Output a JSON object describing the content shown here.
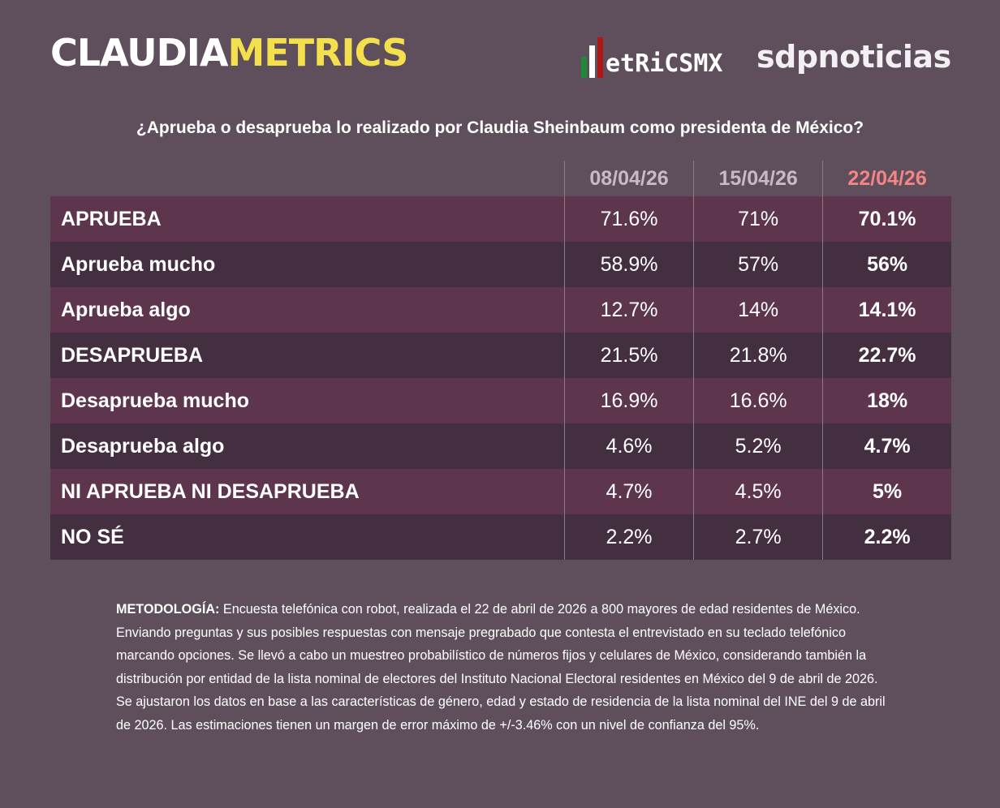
{
  "header": {
    "brand_part1": "CLAUDIA",
    "brand_part2": "METRICS",
    "logo_metrics": "etRiCSMX",
    "logo_sdp": "sdpnoticias",
    "brand_colors": {
      "yellow": "#f4e04d",
      "highlight": "#f28585"
    }
  },
  "title": "¿Aprueba o desaprueba lo realizado por Claudia Sheinbaum como presidenta de México?",
  "chart_data": {
    "type": "table",
    "columns": [
      "08/04/26",
      "15/04/26",
      "22/04/26"
    ],
    "rows": [
      {
        "label": "APRUEBA",
        "values": [
          "71.6%",
          "71%",
          "70.1%"
        ]
      },
      {
        "label": "Aprueba mucho",
        "values": [
          "58.9%",
          "57%",
          "56%"
        ]
      },
      {
        "label": "Aprueba algo",
        "values": [
          "12.7%",
          "14%",
          "14.1%"
        ]
      },
      {
        "label": "DESAPRUEBA",
        "values": [
          "21.5%",
          "21.8%",
          "22.7%"
        ]
      },
      {
        "label": "Desaprueba mucho",
        "values": [
          "16.9%",
          "16.6%",
          "18%"
        ]
      },
      {
        "label": "Desaprueba algo",
        "values": [
          "4.6%",
          "5.2%",
          "4.7%"
        ]
      },
      {
        "label": "NI APRUEBA NI DESAPRUEBA",
        "values": [
          "4.7%",
          "4.5%",
          "5%"
        ]
      },
      {
        "label": "NO SÉ",
        "values": [
          "2.2%",
          "2.7%",
          "2.2%"
        ]
      }
    ]
  },
  "methodology": {
    "label": "METODOLOGÍA:",
    "text": " Encuesta telefónica con robot, realizada el 22 de abril de 2026 a 800 mayores de edad residentes de México. Enviando preguntas y sus posibles respuestas con mensaje pregrabado que contesta el entrevistado en su teclado telefónico marcando opciones. Se llevó a cabo un muestreo probabilístico de números fijos y celulares de México, considerando también la distribución por entidad de la lista nominal de electores del Instituto Nacional Electoral residentes en México del 9 de abril de 2026. Se ajustaron los datos en base a las características de género, edad y estado de residencia de la lista nominal del INE del 9 de abril de 2026. Las estimaciones tienen un margen de error máximo de +/-3.46% con un nivel de confianza del 95%."
  }
}
